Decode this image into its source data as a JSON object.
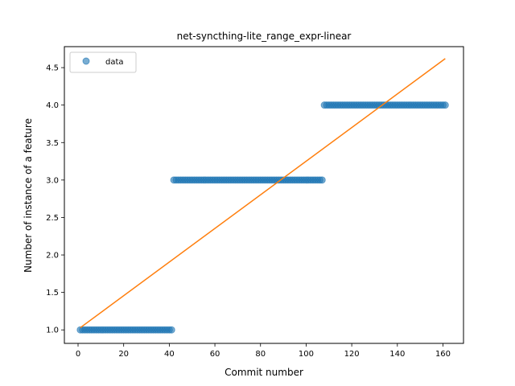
{
  "chart_data": {
    "type": "scatter",
    "title": "net-syncthing-lite_range_expr-linear",
    "xlabel": "Commit number",
    "ylabel": "Number of instance of a feature",
    "xlim": [
      -6.0,
      169.0
    ],
    "ylim": [
      0.82,
      4.78
    ],
    "xticks": [
      0,
      20,
      40,
      60,
      80,
      100,
      120,
      140,
      160
    ],
    "yticks": [
      1.0,
      1.5,
      2.0,
      2.5,
      3.0,
      3.5,
      4.0,
      4.5
    ],
    "xtick_labels": [
      "0",
      "20",
      "40",
      "60",
      "80",
      "100",
      "120",
      "140",
      "160"
    ],
    "ytick_labels": [
      "1.0",
      "1.5",
      "2.0",
      "2.5",
      "3.0",
      "3.5",
      "4.0",
      "4.5"
    ],
    "grid": false,
    "legend": {
      "placement": "upper-left",
      "entries": [
        "data"
      ]
    },
    "series": [
      {
        "name": "data",
        "kind": "scatter",
        "color": "#1f77b4",
        "alpha": 0.6,
        "segments": [
          {
            "x_start": 1,
            "x_end": 41,
            "y": 1.0
          },
          {
            "x_start": 42,
            "x_end": 107,
            "y": 3.0
          },
          {
            "x_start": 108,
            "x_end": 161,
            "y": 4.0
          }
        ]
      },
      {
        "kind": "line",
        "color": "#ff7f0e",
        "x": [
          1,
          161
        ],
        "y": [
          1.03,
          4.62
        ]
      }
    ]
  }
}
